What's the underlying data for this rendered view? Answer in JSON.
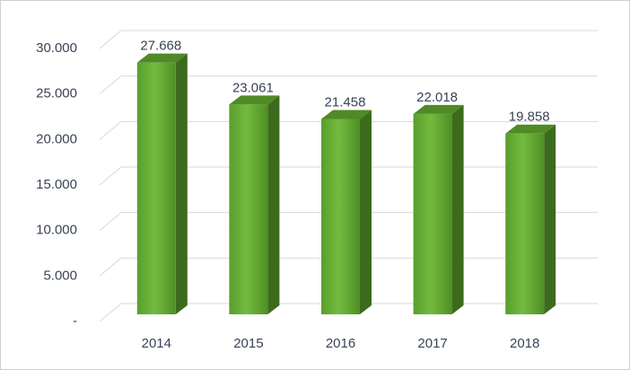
{
  "chart_data": {
    "type": "bar3d",
    "categories": [
      "2014",
      "2015",
      "2016",
      "2017",
      "2018"
    ],
    "values": [
      27668,
      23061,
      21458,
      22018,
      19858
    ],
    "value_labels": [
      "27.668",
      "23.061",
      "21.458",
      "22.018",
      "19.858"
    ],
    "color": "#5fa832",
    "ylim": [
      0,
      30000
    ],
    "yticks": [
      {
        "value": 0,
        "label": "-"
      },
      {
        "value": 5000,
        "label": "5.000"
      },
      {
        "value": 10000,
        "label": "10.000"
      },
      {
        "value": 15000,
        "label": "15.000"
      },
      {
        "value": 20000,
        "label": "20.000"
      },
      {
        "value": 25000,
        "label": "25.000"
      },
      {
        "value": 30000,
        "label": "30.000"
      }
    ],
    "grid": true
  }
}
